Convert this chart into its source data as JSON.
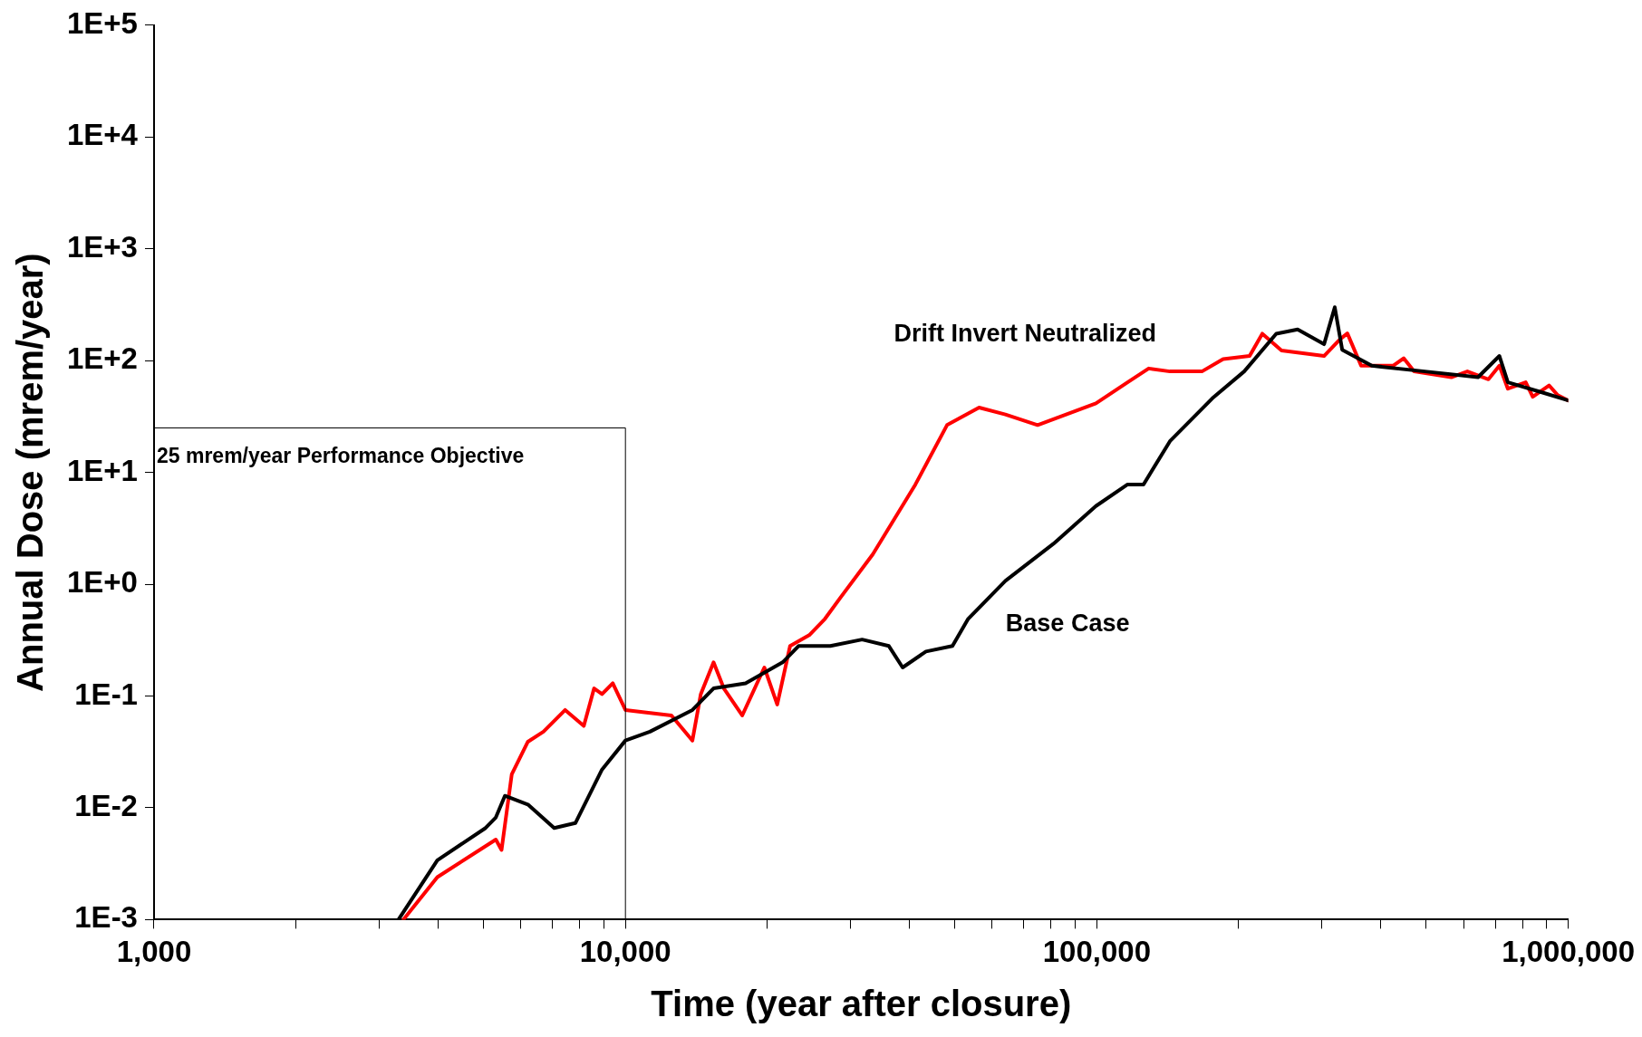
{
  "chart_data": {
    "type": "line",
    "xlabel": "Time (year after closure)",
    "ylabel": "Annual Dose (mrem/year)",
    "log": "xy",
    "grid": false,
    "legend": false,
    "marker": "none",
    "line_style": "solid",
    "xlim": [
      1000,
      1000000
    ],
    "xticks": [
      {
        "value": 1000,
        "label": "1,000"
      },
      {
        "value": 2000,
        "label": null
      },
      {
        "value": 3000,
        "label": null
      },
      {
        "value": 4000,
        "label": null
      },
      {
        "value": 5000,
        "label": null
      },
      {
        "value": 6000,
        "label": null
      },
      {
        "value": 7000,
        "label": null
      },
      {
        "value": 8000,
        "label": null
      },
      {
        "value": 9000,
        "label": null
      },
      {
        "value": 10000,
        "label": "10,000"
      },
      {
        "value": 20000,
        "label": null
      },
      {
        "value": 30000,
        "label": null
      },
      {
        "value": 40000,
        "label": null
      },
      {
        "value": 50000,
        "label": null
      },
      {
        "value": 60000,
        "label": null
      },
      {
        "value": 70000,
        "label": null
      },
      {
        "value": 80000,
        "label": null
      },
      {
        "value": 90000,
        "label": null
      },
      {
        "value": 100000,
        "label": "100,000"
      },
      {
        "value": 200000,
        "label": null
      },
      {
        "value": 300000,
        "label": null
      },
      {
        "value": 400000,
        "label": null
      },
      {
        "value": 500000,
        "label": null
      },
      {
        "value": 600000,
        "label": null
      },
      {
        "value": 700000,
        "label": null
      },
      {
        "value": 800000,
        "label": null
      },
      {
        "value": 900000,
        "label": null
      },
      {
        "value": 1000000,
        "label": "1,000,000"
      }
    ],
    "ylim": [
      0.001,
      100000
    ],
    "yticks": [
      {
        "value": 0.001,
        "label": "1E-3"
      },
      {
        "value": 0.01,
        "label": "1E-2"
      },
      {
        "value": 0.1,
        "label": "1E-1"
      },
      {
        "value": 1,
        "label": "1E+0"
      },
      {
        "value": 10,
        "label": "1E+1"
      },
      {
        "value": 100,
        "label": "1E+2"
      },
      {
        "value": 1000,
        "label": "1E+3"
      },
      {
        "value": 10000,
        "label": "1E+4"
      },
      {
        "value": 100000,
        "label": "1E+5"
      }
    ],
    "ref_lines": [
      {
        "axis": "y",
        "value": 25,
        "label": "25 mrem/year Performance Objective",
        "color": "#000000"
      },
      {
        "axis": "x",
        "value": 10000,
        "label": null,
        "color": "#000000"
      }
    ],
    "annotations": [
      "Drift Invert Neutralized",
      "Base Case"
    ],
    "series": [
      {
        "color": "#000000",
        "x": [
          3300,
          3990,
          5050,
          5310,
          5550,
          6210,
          7060,
          7830,
          8920,
          10000,
          11270,
          13870,
          15380,
          17980,
          21550,
          23290,
          27200,
          31780,
          36210,
          38730,
          43390,
          49400,
          53340,
          63970,
          80900,
          99550,
          116200,
          125600,
          142900,
          175800,
          205400,
          240200,
          266700,
          303400,
          319700,
          331500,
          383000,
          496200,
          643600,
          714500,
          744600,
          879700,
          1000000
        ],
        "values": [
          0.001,
          0.0034,
          0.0066,
          0.0082,
          0.0128,
          0.0107,
          0.0066,
          0.0073,
          0.022,
          0.04,
          0.048,
          0.075,
          0.117,
          0.13,
          0.2,
          0.28,
          0.28,
          0.32,
          0.28,
          0.18,
          0.25,
          0.28,
          0.49,
          1.07,
          2.3,
          5,
          7.8,
          7.8,
          19,
          46,
          80,
          174,
          190,
          140,
          300,
          125,
          90,
          80,
          71,
          110,
          64,
          52,
          44
        ]
      },
      {
        "color": "#ff0000",
        "x": [
          3380,
          3990,
          5310,
          5460,
          5740,
          6210,
          6700,
          7450,
          8160,
          8580,
          8920,
          9400,
          10000,
          12520,
          13870,
          14450,
          15380,
          16170,
          17690,
          19710,
          20990,
          22350,
          24540,
          26500,
          28650,
          33480,
          41220,
          48110,
          56260,
          63970,
          74880,
          99550,
          116200,
          128800,
          142900,
          167100,
          185300,
          210900,
          224400,
          246500,
          303400,
          328000,
          340000,
          363600,
          425000,
          447600,
          471000,
          564900,
          611000,
          677300,
          714500,
          744600,
          812500,
          840900,
          910600,
          950000,
          1000000
        ],
        "values": [
          0.001,
          0.0024,
          0.0052,
          0.0042,
          0.02,
          0.039,
          0.048,
          0.075,
          0.054,
          0.117,
          0.104,
          0.13,
          0.075,
          0.067,
          0.04,
          0.104,
          0.2,
          0.117,
          0.067,
          0.18,
          0.084,
          0.28,
          0.35,
          0.49,
          0.77,
          1.85,
          7.8,
          26.5,
          38,
          33,
          26.5,
          41.5,
          64,
          85,
          80,
          80,
          103,
          110,
          174,
          123,
          110,
          155,
          175,
          90,
          90,
          105,
          80,
          71,
          80,
          68,
          90,
          56,
          64,
          47.5,
          60,
          49,
          44
        ]
      }
    ]
  }
}
